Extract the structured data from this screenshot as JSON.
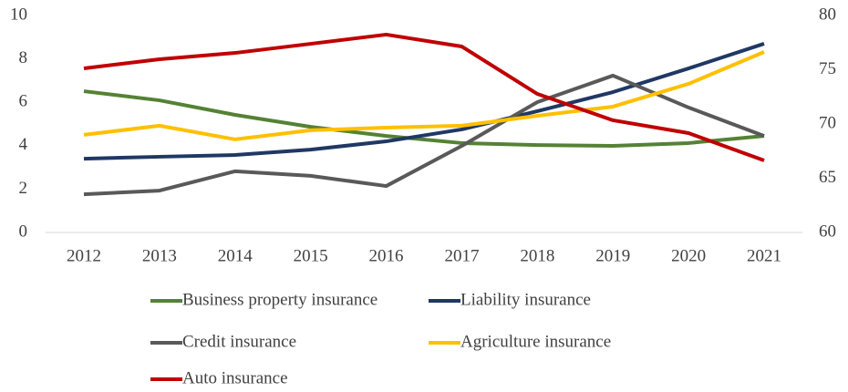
{
  "chart_data": {
    "type": "line",
    "categories": [
      "2012",
      "2013",
      "2014",
      "2015",
      "2016",
      "2017",
      "2018",
      "2019",
      "2020",
      "2021"
    ],
    "series": [
      {
        "name": "Business property insurance",
        "color": "#548235",
        "values": [
          6.51,
          6.09,
          5.42,
          4.87,
          4.45,
          4.12,
          4.03,
          3.99,
          4.12,
          4.45
        ]
      },
      {
        "name": "Liability insurance",
        "color": "#1f3864",
        "values": [
          3.4,
          3.49,
          3.57,
          3.82,
          4.2,
          4.75,
          5.59,
          6.47,
          7.56,
          8.7
        ]
      },
      {
        "name": "Credit insurance",
        "color": "#595959",
        "values": [
          1.76,
          1.93,
          2.82,
          2.61,
          2.14,
          3.99,
          6.01,
          7.23,
          5.76,
          4.45
        ]
      },
      {
        "name": "Agriculture insurance",
        "color": "#ffc000",
        "values": [
          4.5,
          4.92,
          4.29,
          4.71,
          4.83,
          4.92,
          5.38,
          5.8,
          6.85,
          8.32
        ]
      },
      {
        "name": "Auto insurance",
        "color": "#c00000",
        "axis": "y2",
        "values": [
          75.13,
          75.97,
          76.55,
          77.39,
          78.24,
          77.14,
          72.77,
          70.34,
          69.16,
          66.64
        ]
      }
    ],
    "ylim": [
      0,
      10
    ],
    "yticks": [
      0,
      2,
      4,
      6,
      8,
      10
    ],
    "y2lim": [
      60,
      80
    ],
    "y2ticks": [
      60,
      65,
      70,
      75,
      80
    ]
  }
}
